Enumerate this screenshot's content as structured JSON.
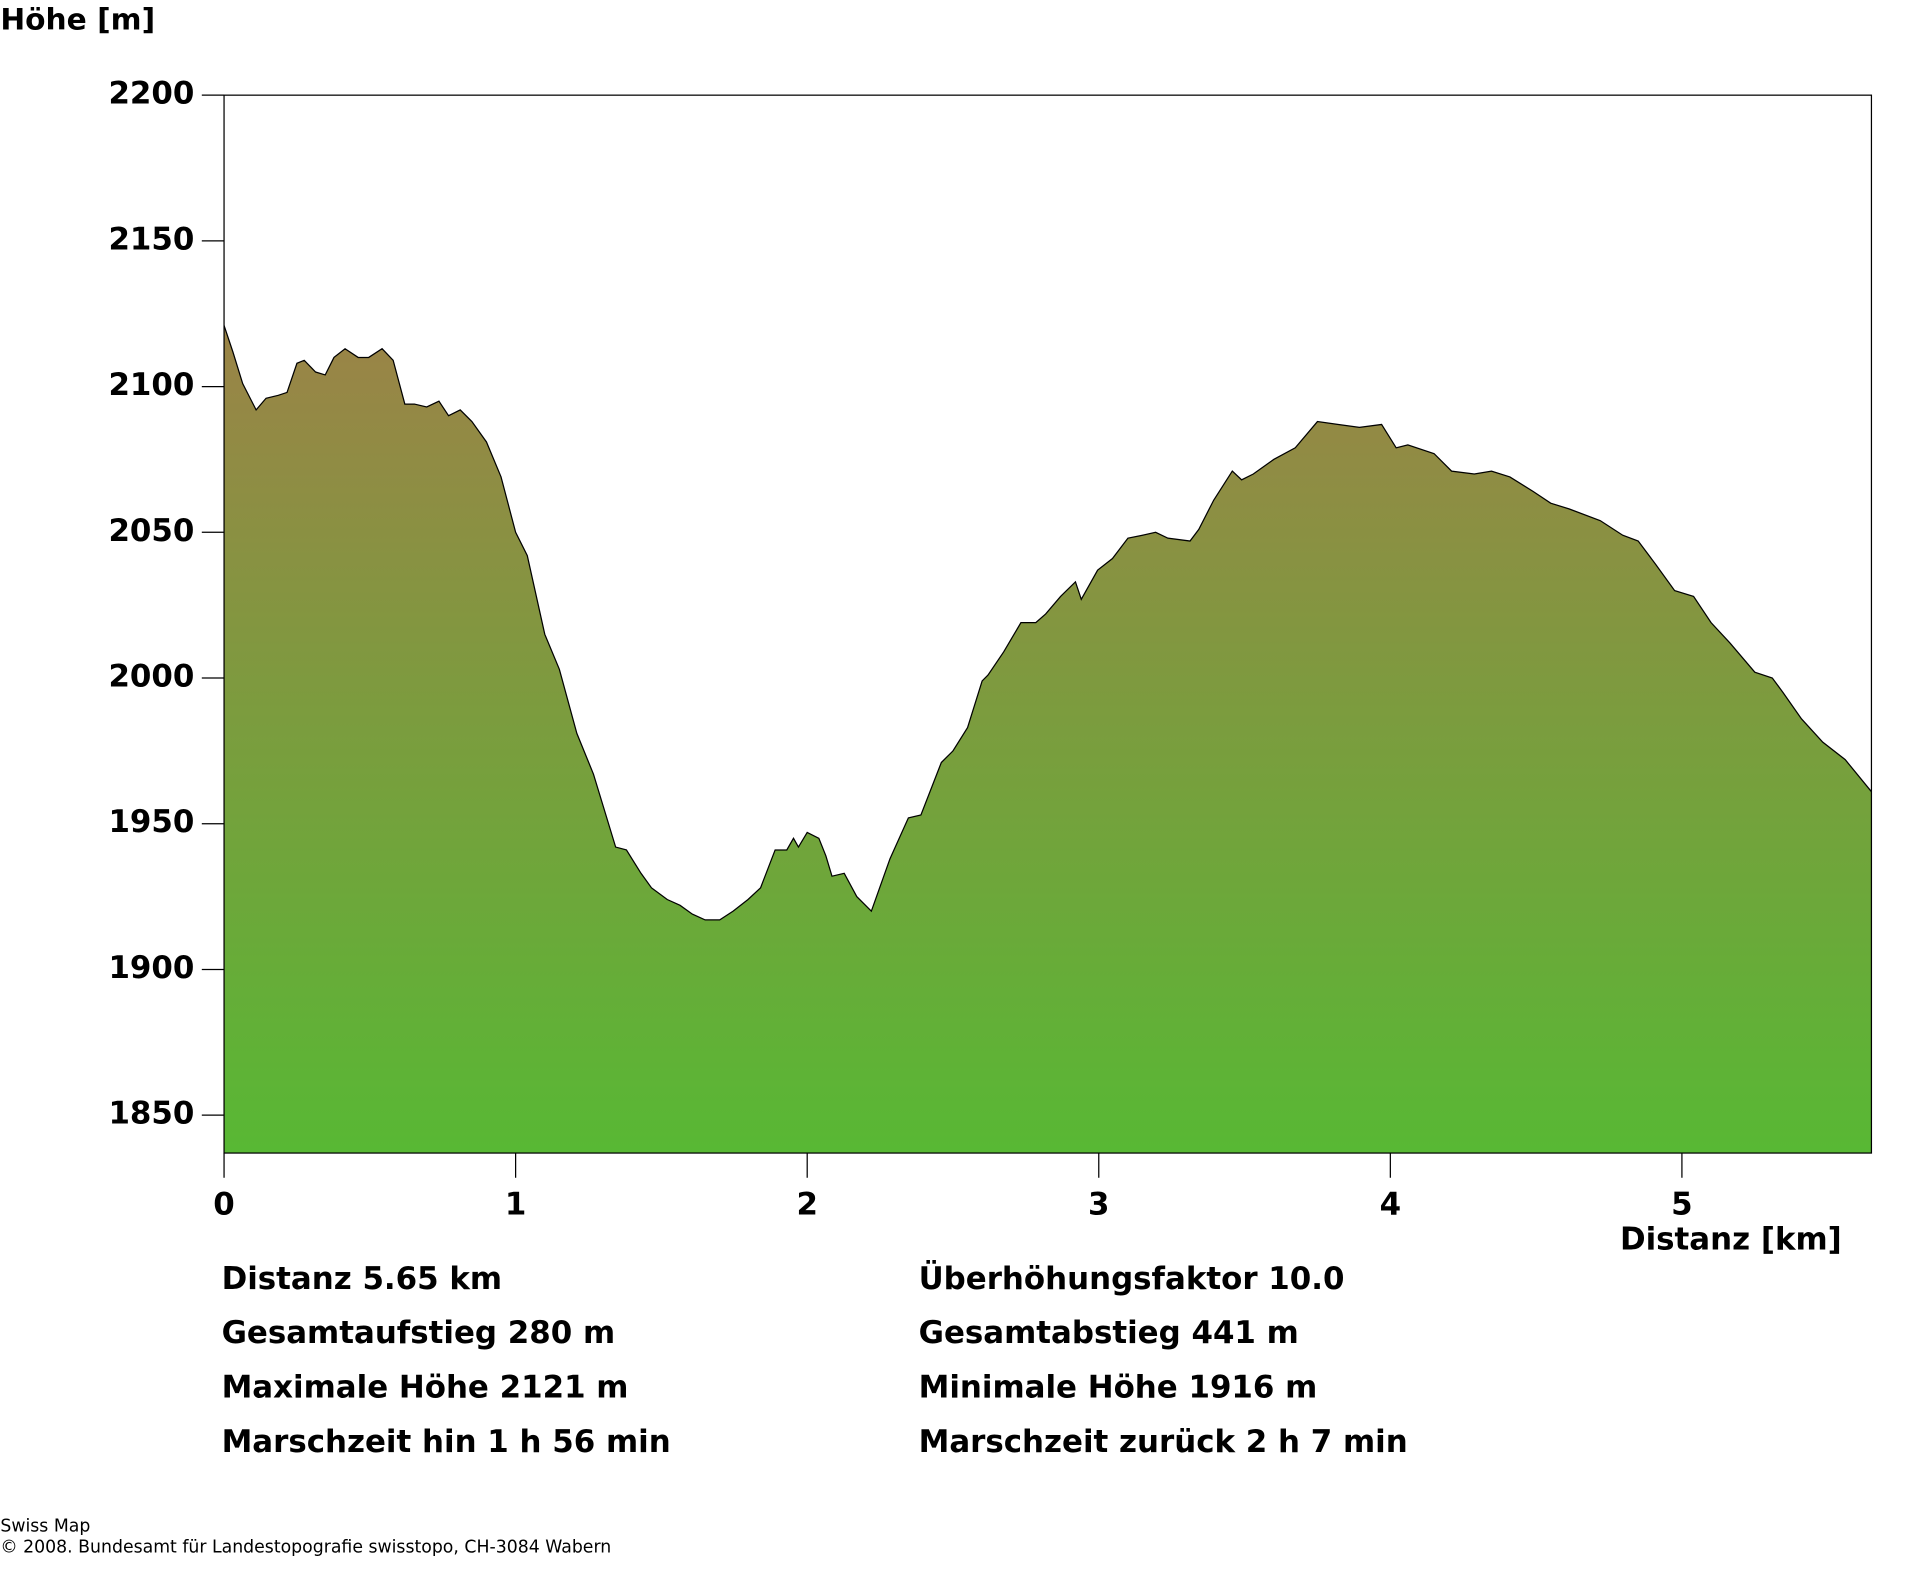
{
  "chart_data": {
    "type": "area",
    "y_label": "Höhe [m]",
    "x_label": "Distanz [km]",
    "xlim": [
      0,
      5.65
    ],
    "ylim": [
      1837,
      2200
    ],
    "xticks": [
      0,
      1,
      2,
      3,
      4,
      5
    ],
    "yticks": [
      1850,
      1900,
      1950,
      2000,
      2050,
      2100,
      2150,
      2200
    ],
    "color_top": "#9b8347",
    "color_bottom": "#58b834",
    "x": [
      0,
      0.03,
      0.064,
      0.11,
      0.144,
      0.186,
      0.216,
      0.25,
      0.275,
      0.314,
      0.347,
      0.377,
      0.415,
      0.46,
      0.496,
      0.542,
      0.58,
      0.62,
      0.653,
      0.695,
      0.737,
      0.77,
      0.81,
      0.85,
      0.9,
      0.95,
      1.0,
      1.04,
      1.1,
      1.15,
      1.21,
      1.267,
      1.343,
      1.38,
      1.43,
      1.466,
      1.52,
      1.564,
      1.606,
      1.65,
      1.7,
      1.746,
      1.797,
      1.84,
      1.89,
      1.93,
      1.953,
      1.97,
      2.0,
      2.04,
      2.064,
      2.085,
      2.127,
      2.17,
      2.22,
      2.284,
      2.347,
      2.39,
      2.46,
      2.5,
      2.55,
      2.6,
      2.62,
      2.674,
      2.733,
      2.784,
      2.818,
      2.869,
      2.92,
      2.94,
      2.996,
      3.047,
      3.1,
      3.15,
      3.195,
      3.237,
      3.313,
      3.343,
      3.394,
      3.458,
      3.49,
      3.53,
      3.6,
      3.674,
      3.75,
      3.822,
      3.894,
      3.97,
      4.02,
      4.06,
      4.15,
      4.21,
      4.288,
      4.347,
      4.41,
      4.49,
      4.55,
      4.614,
      4.72,
      4.797,
      4.85,
      4.91,
      4.975,
      5.04,
      5.1,
      5.165,
      5.25,
      5.31,
      5.347,
      5.41,
      5.483,
      5.56,
      5.65
    ],
    "values": [
      2121,
      2112,
      2101,
      2092,
      2096,
      2097,
      2098,
      2108,
      2109,
      2105,
      2104,
      2110,
      2113,
      2110,
      2110,
      2113,
      2109,
      2094,
      2094,
      2093,
      2095,
      2090,
      2092,
      2088,
      2081,
      2069,
      2050,
      2042,
      2015,
      2003,
      1981,
      1967,
      1942,
      1941,
      1933,
      1928,
      1924,
      1922,
      1919,
      1917,
      1917,
      1920,
      1924,
      1928,
      1941,
      1941,
      1945,
      1942,
      1947,
      1945,
      1939,
      1932,
      1933,
      1925,
      1920,
      1938,
      1952,
      1953,
      1971,
      1975,
      1983,
      1999,
      2001,
      2009,
      2019,
      2019,
      2022,
      2028,
      2033,
      2027,
      2037,
      2041,
      2048,
      2049,
      2050,
      2048,
      2047,
      2051,
      2061,
      2071,
      2068,
      2070,
      2075,
      2079,
      2088,
      2087,
      2086,
      2087,
      2079,
      2080,
      2077,
      2071,
      2070,
      2071,
      2069,
      2064,
      2060,
      2058,
      2054,
      2049,
      2047,
      2039,
      2030,
      2028,
      2019,
      2012,
      2002,
      2000,
      1995,
      1986,
      1978,
      1972,
      1961
    ]
  },
  "stats": {
    "left": [
      "Distanz 5.65 km",
      "Gesamtaufstieg  280 m",
      "Maximale Höhe  2121 m",
      "Marschzeit hin  1 h 56 min"
    ],
    "right": [
      "Überhöhungsfaktor 10.0",
      "Gesamtabstieg  441 m",
      "Minimale Höhe  1916 m",
      "Marschzeit zurück  2 h 7 min"
    ]
  },
  "footer": [
    "Swiss Map",
    "© 2008. Bundesamt für Landestopografie swisstopo, CH-3084 Wabern"
  ]
}
